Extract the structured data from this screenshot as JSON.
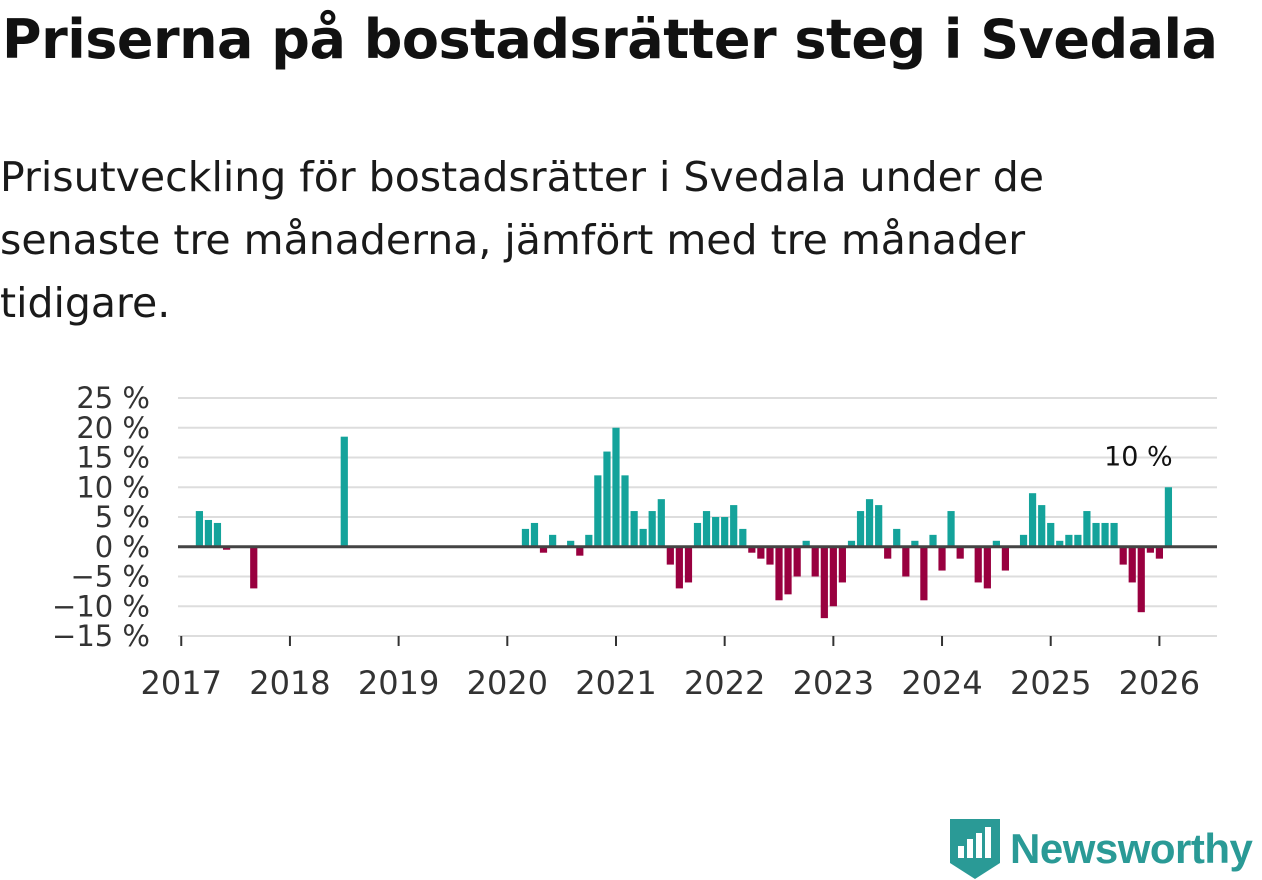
{
  "title": "Priserna på bostadsrätter steg i Svedala",
  "subtitle": "Prisutveckling för bostadsrätter i Svedala under de senaste tre månaderna, jämfört med tre månader tidigare.",
  "brand": {
    "name": "Newsworthy"
  },
  "colors": {
    "positive": "#14a39b",
    "negative": "#99003f",
    "grid": "#dddddd",
    "zero_line": "#444444",
    "brand": "#2a9a96"
  },
  "chart_data": {
    "type": "bar",
    "title": "",
    "xlabel": "",
    "ylabel": "",
    "ylim": [
      -15,
      25
    ],
    "y_ticks": [
      25,
      20,
      15,
      10,
      5,
      0,
      -5,
      -10,
      -15
    ],
    "y_tick_labels": [
      "25 %",
      "20 %",
      "15 %",
      "10 %",
      "5 %",
      "0 %",
      "−5 %",
      "−10 %",
      "−15 %"
    ],
    "x_range": [
      2016.97,
      2026.53
    ],
    "x_ticks": [
      2017,
      2018,
      2019,
      2020,
      2021,
      2022,
      2023,
      2024,
      2025,
      2026
    ],
    "x_tick_labels": [
      "2017",
      "2018",
      "2019",
      "2020",
      "2021",
      "2022",
      "2023",
      "2024",
      "2025",
      "2026"
    ],
    "annotation": {
      "x": 2026.083,
      "y": 10,
      "label": "10 %"
    },
    "series": [
      {
        "name": "Prisutveckling",
        "points": [
          {
            "x": 2017.167,
            "y": 6
          },
          {
            "x": 2017.25,
            "y": 4.5
          },
          {
            "x": 2017.333,
            "y": 4
          },
          {
            "x": 2017.417,
            "y": -0.5
          },
          {
            "x": 2017.667,
            "y": -7
          },
          {
            "x": 2018.5,
            "y": 18.5
          },
          {
            "x": 2020.167,
            "y": 3
          },
          {
            "x": 2020.25,
            "y": 4
          },
          {
            "x": 2020.333,
            "y": -1
          },
          {
            "x": 2020.417,
            "y": 2
          },
          {
            "x": 2020.583,
            "y": 1
          },
          {
            "x": 2020.667,
            "y": -1.5
          },
          {
            "x": 2020.75,
            "y": 2
          },
          {
            "x": 2020.833,
            "y": 12
          },
          {
            "x": 2020.917,
            "y": 16
          },
          {
            "x": 2021.0,
            "y": 20
          },
          {
            "x": 2021.083,
            "y": 12
          },
          {
            "x": 2021.167,
            "y": 6
          },
          {
            "x": 2021.25,
            "y": 3
          },
          {
            "x": 2021.333,
            "y": 6
          },
          {
            "x": 2021.417,
            "y": 8
          },
          {
            "x": 2021.5,
            "y": -3
          },
          {
            "x": 2021.583,
            "y": -7
          },
          {
            "x": 2021.667,
            "y": -6
          },
          {
            "x": 2021.75,
            "y": 4
          },
          {
            "x": 2021.833,
            "y": 6
          },
          {
            "x": 2021.917,
            "y": 5
          },
          {
            "x": 2022.0,
            "y": 5
          },
          {
            "x": 2022.083,
            "y": 7
          },
          {
            "x": 2022.167,
            "y": 3
          },
          {
            "x": 2022.25,
            "y": -1
          },
          {
            "x": 2022.333,
            "y": -2
          },
          {
            "x": 2022.417,
            "y": -3
          },
          {
            "x": 2022.5,
            "y": -9
          },
          {
            "x": 2022.583,
            "y": -8
          },
          {
            "x": 2022.667,
            "y": -5
          },
          {
            "x": 2022.75,
            "y": 1
          },
          {
            "x": 2022.833,
            "y": -5
          },
          {
            "x": 2022.917,
            "y": -12
          },
          {
            "x": 2023.0,
            "y": -10
          },
          {
            "x": 2023.083,
            "y": -6
          },
          {
            "x": 2023.167,
            "y": 1
          },
          {
            "x": 2023.25,
            "y": 6
          },
          {
            "x": 2023.333,
            "y": 8
          },
          {
            "x": 2023.417,
            "y": 7
          },
          {
            "x": 2023.5,
            "y": -2
          },
          {
            "x": 2023.583,
            "y": 3
          },
          {
            "x": 2023.667,
            "y": -5
          },
          {
            "x": 2023.75,
            "y": 1
          },
          {
            "x": 2023.833,
            "y": -9
          },
          {
            "x": 2023.917,
            "y": 2
          },
          {
            "x": 2024.0,
            "y": -4
          },
          {
            "x": 2024.083,
            "y": 6
          },
          {
            "x": 2024.167,
            "y": -2
          },
          {
            "x": 2024.333,
            "y": -6
          },
          {
            "x": 2024.417,
            "y": -7
          },
          {
            "x": 2024.5,
            "y": 1
          },
          {
            "x": 2024.583,
            "y": -4
          },
          {
            "x": 2024.75,
            "y": 2
          },
          {
            "x": 2024.833,
            "y": 9
          },
          {
            "x": 2024.917,
            "y": 7
          },
          {
            "x": 2025.0,
            "y": 4
          },
          {
            "x": 2025.083,
            "y": 1
          },
          {
            "x": 2025.167,
            "y": 2
          },
          {
            "x": 2025.25,
            "y": 2
          },
          {
            "x": 2025.333,
            "y": 6
          },
          {
            "x": 2025.417,
            "y": 4
          },
          {
            "x": 2025.5,
            "y": 4
          },
          {
            "x": 2025.583,
            "y": 4
          },
          {
            "x": 2025.667,
            "y": -3
          },
          {
            "x": 2025.75,
            "y": -6
          },
          {
            "x": 2025.833,
            "y": -11
          },
          {
            "x": 2025.917,
            "y": -1
          },
          {
            "x": 2026.0,
            "y": -2
          },
          {
            "x": 2026.083,
            "y": 10
          }
        ]
      }
    ]
  }
}
